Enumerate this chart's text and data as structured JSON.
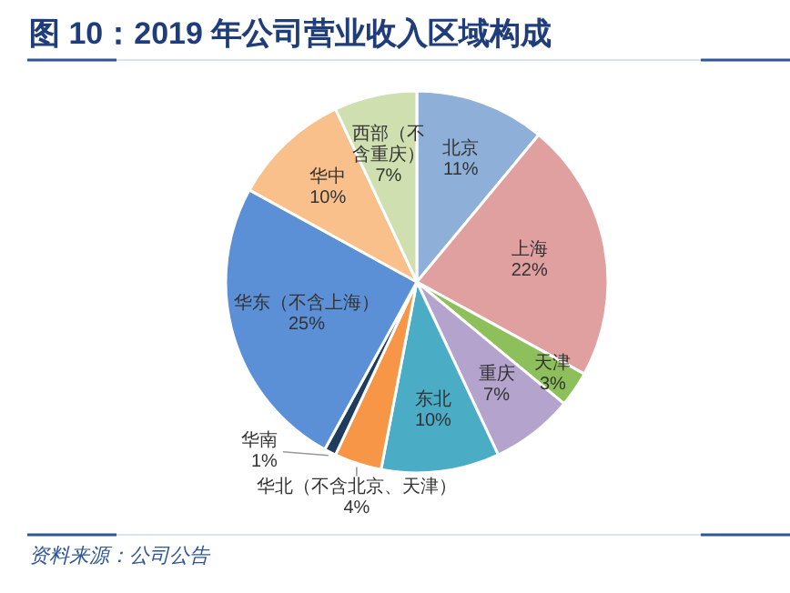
{
  "chart_data": {
    "type": "pie",
    "title": "图 10：2019 年公司营业收入区域构成",
    "categories": [
      "北京",
      "上海",
      "天津",
      "重庆",
      "东北",
      "华北（不含北京、天津）",
      "华南",
      "华东（不含上海）",
      "华中",
      "西部（不含重庆）"
    ],
    "values": [
      11,
      22,
      3,
      7,
      10,
      4,
      1,
      25,
      10,
      7
    ],
    "colors": [
      "#8eb0d8",
      "#e0a0a0",
      "#8dc05a",
      "#b4a3cc",
      "#4bacc6",
      "#f79646",
      "#1f3c5e",
      "#5b8fd6",
      "#f9c08c",
      "#cfdfb0"
    ],
    "value_labels": [
      "11%",
      "22%",
      "3%",
      "7%",
      "10%",
      "4%",
      "1%",
      "25%",
      "10%",
      "7%"
    ],
    "annotations": [
      "资料来源：公司公告"
    ]
  }
}
